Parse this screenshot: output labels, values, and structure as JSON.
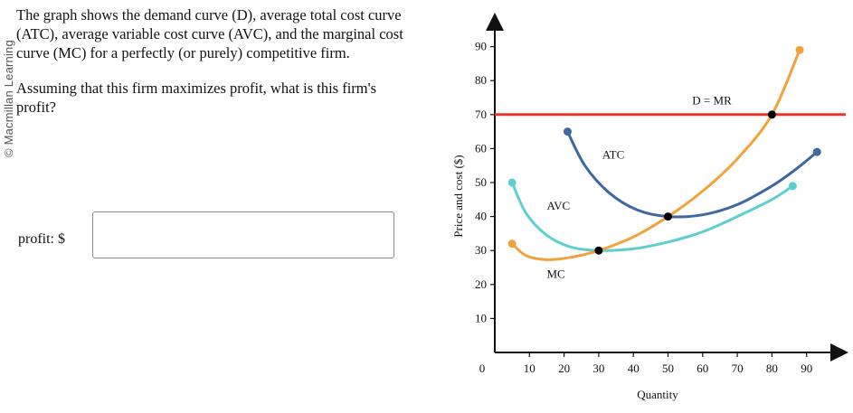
{
  "watermark": "© Macmillan Learning",
  "question": {
    "paragraph1": "The graph shows the demand curve (D), average total cost curve (ATC), average variable cost curve (AVC), and the marginal cost curve (MC) for a perfectly (or purely) competitive firm.",
    "paragraph2": "Assuming that this firm maximizes profit, what is this firm's profit?"
  },
  "answer": {
    "label": "profit: $",
    "value": "",
    "placeholder": ""
  },
  "colors": {
    "demand": "#e8362b",
    "atc": "#3f67a0",
    "avc": "#5ccfce",
    "mc": "#f2a23a"
  },
  "chart_data": {
    "type": "line",
    "xlabel": "Quantity",
    "ylabel": "Price and cost ($)",
    "xlim": [
      0,
      95
    ],
    "ylim": [
      0,
      95
    ],
    "origin_label": "0",
    "x_ticks": [
      10,
      20,
      30,
      40,
      50,
      60,
      70,
      80,
      90
    ],
    "y_ticks": [
      10,
      20,
      30,
      40,
      50,
      60,
      70,
      80,
      90
    ],
    "series": [
      {
        "name": "D = MR",
        "key": "demand",
        "kind": "line",
        "points": [
          [
            0,
            70
          ],
          [
            95,
            70
          ]
        ]
      },
      {
        "name": "ATC",
        "key": "atc",
        "kind": "curve",
        "points": [
          [
            21,
            65
          ],
          [
            26,
            55
          ],
          [
            33,
            47
          ],
          [
            41,
            42
          ],
          [
            50,
            40
          ],
          [
            60,
            40.5
          ],
          [
            70,
            43.5
          ],
          [
            80,
            49
          ],
          [
            87,
            54
          ],
          [
            93,
            59
          ]
        ]
      },
      {
        "name": "AVC",
        "key": "avc",
        "kind": "curve",
        "points": [
          [
            5,
            50
          ],
          [
            9,
            41
          ],
          [
            15,
            34.5
          ],
          [
            22,
            31
          ],
          [
            30,
            30
          ],
          [
            40,
            30.5
          ],
          [
            50,
            32.5
          ],
          [
            60,
            35.5
          ],
          [
            70,
            40
          ],
          [
            80,
            45
          ],
          [
            86,
            49
          ]
        ]
      },
      {
        "name": "MC",
        "key": "mc",
        "kind": "curve",
        "points": [
          [
            5,
            32
          ],
          [
            9,
            28.5
          ],
          [
            15,
            27.3
          ],
          [
            22,
            28
          ],
          [
            30,
            30
          ],
          [
            40,
            34
          ],
          [
            50,
            40
          ],
          [
            60,
            47.5
          ],
          [
            70,
            57
          ],
          [
            80,
            70
          ],
          [
            88,
            89
          ]
        ]
      }
    ],
    "labels": [
      {
        "text": "D = MR",
        "x": 57,
        "y": 73
      },
      {
        "text": "ATC",
        "x": 31,
        "y": 57
      },
      {
        "text": "AVC",
        "x": 15,
        "y": 42
      },
      {
        "text": "MC",
        "x": 15,
        "y": 22
      }
    ],
    "intersections": [
      [
        30,
        30
      ],
      [
        50,
        40
      ],
      [
        80,
        70
      ]
    ]
  }
}
